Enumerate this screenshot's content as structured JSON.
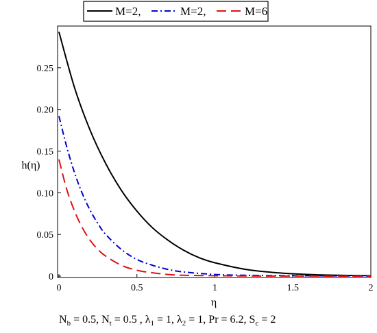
{
  "chart_data": {
    "type": "line",
    "xlabel": "η",
    "ylabel": "h(η)",
    "xlim": [
      0,
      2
    ],
    "ylim": [
      0,
      0.3
    ],
    "xticks": [
      "0",
      "0.5",
      "1",
      "1.5",
      "2"
    ],
    "yticks": [
      "0",
      "0.05",
      "0.10",
      "0.15",
      "0.20",
      "0.25"
    ],
    "legend_position": "top",
    "caption": {
      "plain1": "N",
      "sub1": "b",
      "plain2": " = 0.5, N",
      "sub2": "t",
      "plain3": " = 0.5 , λ",
      "sub3": "1",
      "plain4": " = 1, λ",
      "sub4": "2",
      "plain5": " = 1, Pr = 6.2, S",
      "sub5": "c",
      "plain6": " = 2"
    },
    "series": [
      {
        "name": "M=2,",
        "color": "#000000",
        "dash": "solid",
        "x": [
          0,
          0.1,
          0.2,
          0.3,
          0.4,
          0.5,
          0.6,
          0.7,
          0.8,
          0.9,
          1.0,
          1.2,
          1.4,
          1.6,
          1.8,
          2.0
        ],
        "y": [
          0.293,
          0.226,
          0.175,
          0.135,
          0.103,
          0.078,
          0.058,
          0.043,
          0.031,
          0.022,
          0.016,
          0.008,
          0.004,
          0.002,
          0.001,
          0.0005
        ]
      },
      {
        "name": "M=2,",
        "color": "#0000cc",
        "dash": "dashdot",
        "x": [
          0,
          0.05,
          0.1,
          0.15,
          0.2,
          0.25,
          0.3,
          0.4,
          0.5,
          0.6,
          0.7,
          0.8,
          1.0,
          1.2,
          1.5,
          2.0
        ],
        "y": [
          0.192,
          0.155,
          0.124,
          0.099,
          0.079,
          0.063,
          0.05,
          0.032,
          0.02,
          0.013,
          0.008,
          0.005,
          0.002,
          0.001,
          0.0005,
          0.0002
        ]
      },
      {
        "name": "M=6",
        "color": "#e01010",
        "dash": "dash",
        "x": [
          0,
          0.05,
          0.1,
          0.15,
          0.2,
          0.25,
          0.3,
          0.4,
          0.5,
          0.6,
          0.7,
          0.8,
          1.0,
          1.2,
          1.5,
          2.0
        ],
        "y": [
          0.14,
          0.104,
          0.078,
          0.058,
          0.043,
          0.032,
          0.024,
          0.013,
          0.007,
          0.004,
          0.002,
          0.001,
          0.0005,
          0.0002,
          0.0001,
          0.0
        ]
      }
    ]
  }
}
